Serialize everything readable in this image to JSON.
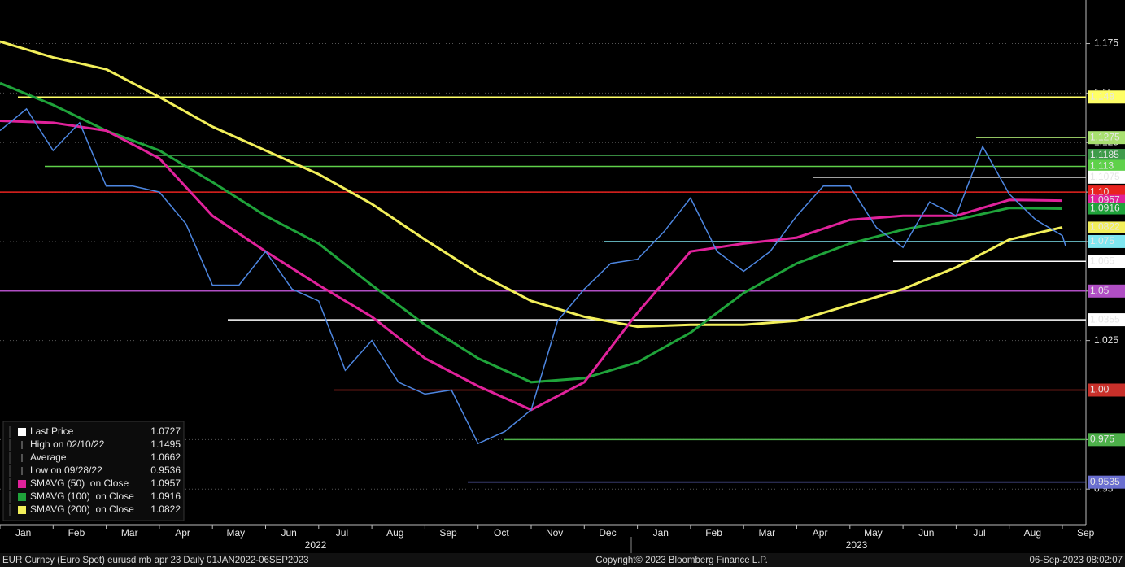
{
  "chart_data": {
    "type": "line",
    "series": [
      {
        "name": "Last Price",
        "color": "#4d86e0",
        "values": [
          1.131,
          1.142,
          1.121,
          1.135,
          1.103,
          1.103,
          1.1,
          1.084,
          1.053,
          1.053,
          1.07,
          1.051,
          1.045,
          1.01,
          1.025,
          1.004,
          0.998,
          1.0,
          0.973,
          0.979,
          0.99,
          1.035,
          1.051,
          1.064,
          1.066,
          1.08,
          1.097,
          1.07,
          1.06,
          1.07,
          1.088,
          1.103,
          1.103,
          1.082,
          1.072,
          1.095,
          1.088,
          1.123,
          1.099,
          1.086,
          1.078,
          1.0727
        ]
      },
      {
        "name": "SMAVG (50)  on Close",
        "color": "#e0229b",
        "values": [
          1.136,
          1.135,
          1.131,
          1.117,
          1.088,
          1.07,
          1.053,
          1.037,
          1.016,
          1.002,
          0.99,
          1.004,
          1.039,
          1.07,
          1.074,
          1.077,
          1.086,
          1.088,
          1.088,
          1.096,
          1.0957
        ]
      },
      {
        "name": "SMAVG (100)  on Close",
        "color": "#1fa33a",
        "values": [
          1.155,
          1.144,
          1.131,
          1.121,
          1.105,
          1.088,
          1.074,
          1.053,
          1.033,
          1.016,
          1.004,
          1.006,
          1.014,
          1.029,
          1.049,
          1.064,
          1.074,
          1.081,
          1.086,
          1.092,
          1.0916
        ]
      },
      {
        "name": "SMAVG (200)  on Close",
        "color": "#f2ef5a",
        "values": [
          1.176,
          1.168,
          1.162,
          1.148,
          1.133,
          1.121,
          1.109,
          1.094,
          1.076,
          1.059,
          1.045,
          1.037,
          1.032,
          1.033,
          1.033,
          1.035,
          1.043,
          1.051,
          1.062,
          1.076,
          1.0822
        ]
      }
    ],
    "x_labels": [
      "Jan",
      "Feb",
      "Mar",
      "Apr",
      "May",
      "Jun",
      "Jul",
      "Aug",
      "Sep",
      "Oct",
      "Nov",
      "Dec",
      "Jan",
      "Feb",
      "Mar",
      "Apr",
      "May",
      "Jun",
      "Jul",
      "Aug",
      "Sep"
    ],
    "year_labels": [
      "2022",
      "2023"
    ],
    "ylim": [
      0.932,
      1.197
    ],
    "yticks": [
      0.95,
      0.975,
      {
        "value": 1,
        "label": "1.00"
      },
      1.025,
      1.05,
      1.075,
      {
        "value": 1.1,
        "label": "1.10"
      },
      1.125,
      1.15,
      1.175
    ],
    "grid": true,
    "levels": [
      {
        "value": 1.148,
        "color": "#ffff66",
        "text_color": "#000000"
      },
      {
        "value": 1.1275,
        "color": "#a8e070",
        "text_color": "#000000"
      },
      {
        "value": 1.1185,
        "color": "#3f9b4a",
        "text_color": "#000000"
      },
      {
        "value": 1.113,
        "color": "#5fd14a",
        "text_color": "#000000"
      },
      {
        "value": 1.1075,
        "color": "#ffffff",
        "text_color": "#000000"
      },
      {
        "value": 1.1,
        "label": "1.10",
        "color": "#e8231f",
        "text_color": "#ffffff"
      },
      {
        "value": 1.075,
        "color": "#7fe6f0",
        "text_color": "#000000"
      },
      {
        "value": 1.065,
        "color": "#ffffff",
        "text_color": "#000000"
      },
      {
        "value": 1.05,
        "color": "#b04ec4",
        "text_color": "#ffffff"
      },
      {
        "value": 1.0355,
        "color": "#ffffff",
        "text_color": "#000000"
      },
      {
        "value": 1,
        "label": "1.00",
        "color": "#c8302a",
        "text_color": "#ffffff"
      },
      {
        "value": 0.975,
        "color": "#4db04a",
        "text_color": "#000000"
      },
      {
        "value": 0.9535,
        "color": "#6a6fd0",
        "text_color": "#ffffff"
      }
    ],
    "stats": [
      {
        "label": "High on 02/10/22",
        "value": 1.1495
      },
      {
        "label": "Average",
        "value": 1.0662
      },
      {
        "label": "Low on 09/28/22",
        "value": 0.9536
      }
    ],
    "footer": {
      "left": "EUR Curncy (Euro Spot) eurusd mb apr 23  Daily 01JAN2022-06SEP2023",
      "center": "Copyright© 2023 Bloomberg Finance L.P.",
      "right": "06-Sep-2023 08:02:07"
    }
  }
}
